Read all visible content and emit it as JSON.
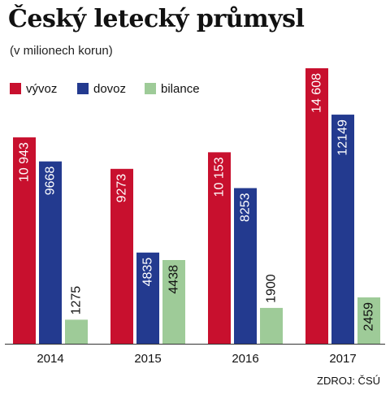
{
  "title": "Český letecký průmysl",
  "subtitle": "(v milionech korun)",
  "source": "ZDROJ: ČSÚ",
  "colors": {
    "vyvoz": "#c8102e",
    "dovoz": "#233a8f",
    "bilance": "#9ecb98"
  },
  "chart_data": {
    "type": "bar",
    "categories": [
      "2014",
      "2015",
      "2016",
      "2017"
    ],
    "series": [
      {
        "name": "vývoz",
        "values": [
          10943,
          9273,
          10153,
          14608
        ],
        "labels": [
          "10 943",
          "9273",
          "10 153",
          "14 608"
        ]
      },
      {
        "name": "dovoz",
        "values": [
          9668,
          4835,
          8253,
          12149
        ],
        "labels": [
          "9668",
          "4835",
          "8253",
          "12149"
        ]
      },
      {
        "name": "bilance",
        "values": [
          1275,
          4438,
          1900,
          2459
        ],
        "labels": [
          "1275",
          "4438",
          "1900",
          "2459"
        ]
      }
    ],
    "legend_position": "top-left",
    "grid": false,
    "ylim": [
      0,
      15000
    ]
  }
}
